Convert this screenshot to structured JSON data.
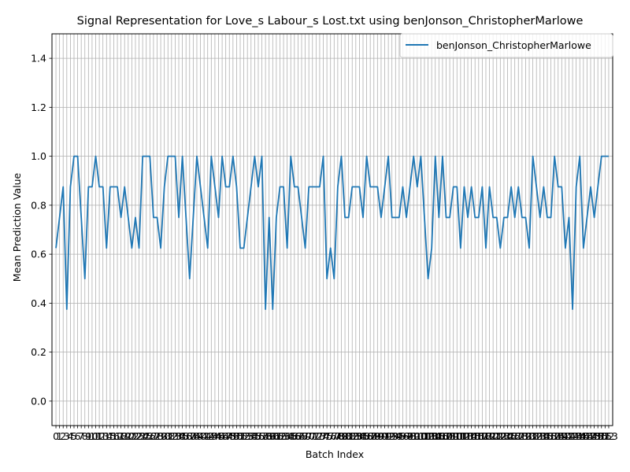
{
  "chart_data": {
    "type": "line",
    "title": "Signal Representation for Love_s Labour_s Lost.txt using benJonson_ChristopherMarlowe",
    "xlabel": "Batch Index",
    "ylabel": "Mean Prediction Value",
    "ylim": [
      -0.1,
      1.5
    ],
    "xlim": [
      -1.1,
      154.1
    ],
    "yticks": [
      0.0,
      0.2,
      0.4,
      0.6,
      0.8,
      1.0,
      1.2,
      1.4
    ],
    "ytick_labels": [
      "0.0",
      "0.2",
      "0.4",
      "0.6",
      "0.8",
      "1.0",
      "1.2",
      "1.4"
    ],
    "xtick_step": 1,
    "grid": true,
    "legend_position": "upper right",
    "colors": {
      "series": "#1f77b4",
      "grid": "#b0b0b0"
    },
    "x": [
      0,
      1,
      2,
      3,
      4,
      5,
      6,
      7,
      8,
      9,
      10,
      11,
      12,
      13,
      14,
      15,
      16,
      17,
      18,
      19,
      20,
      21,
      22,
      23,
      24,
      25,
      26,
      27,
      28,
      29,
      30,
      31,
      32,
      33,
      34,
      35,
      36,
      37,
      38,
      39,
      40,
      41,
      42,
      43,
      44,
      45,
      46,
      47,
      48,
      49,
      50,
      51,
      52,
      53,
      54,
      55,
      56,
      57,
      58,
      59,
      60,
      61,
      62,
      63,
      64,
      65,
      66,
      67,
      68,
      69,
      70,
      71,
      72,
      73,
      74,
      75,
      76,
      77,
      78,
      79,
      80,
      81,
      82,
      83,
      84,
      85,
      86,
      87,
      88,
      89,
      90,
      91,
      92,
      93,
      94,
      95,
      96,
      97,
      98,
      99,
      100,
      101,
      102,
      103,
      104,
      105,
      106,
      107,
      108,
      109,
      110,
      111,
      112,
      113,
      114,
      115,
      116,
      117,
      118,
      119,
      120,
      121,
      122,
      123,
      124,
      125,
      126,
      127,
      128,
      129,
      130,
      131,
      132,
      133,
      134,
      135,
      136,
      137,
      138,
      139,
      140,
      141,
      142,
      143,
      144,
      145,
      146,
      147,
      148,
      149,
      150,
      151,
      152,
      153
    ],
    "series": [
      {
        "name": "benJonson_ChristopherMarlowe",
        "values": [
          0.625,
          0.75,
          0.875,
          0.375,
          0.875,
          1.0,
          1.0,
          0.75,
          0.5,
          0.875,
          0.875,
          1.0,
          0.875,
          0.875,
          0.625,
          0.875,
          0.875,
          0.875,
          0.75,
          0.875,
          0.75,
          0.625,
          0.75,
          0.625,
          1.0,
          1.0,
          1.0,
          0.75,
          0.75,
          0.625,
          0.875,
          1.0,
          1.0,
          1.0,
          0.75,
          1.0,
          0.75,
          0.5,
          0.75,
          1.0,
          0.875,
          0.75,
          0.625,
          1.0,
          0.875,
          0.75,
          1.0,
          0.875,
          0.875,
          1.0,
          0.875,
          0.625,
          0.625,
          0.75,
          0.875,
          1.0,
          0.875,
          1.0,
          0.375,
          0.75,
          0.375,
          0.75,
          0.875,
          0.875,
          0.625,
          1.0,
          0.875,
          0.875,
          0.75,
          0.625,
          0.875,
          0.875,
          0.875,
          0.875,
          1.0,
          0.5,
          0.625,
          0.5,
          0.875,
          1.0,
          0.75,
          0.75,
          0.875,
          0.875,
          0.875,
          0.75,
          1.0,
          0.875,
          0.875,
          0.875,
          0.75,
          0.875,
          1.0,
          0.75,
          0.75,
          0.75,
          0.875,
          0.75,
          0.875,
          1.0,
          0.875,
          1.0,
          0.75,
          0.5,
          0.625,
          1.0,
          0.75,
          1.0,
          0.75,
          0.75,
          0.875,
          0.875,
          0.625,
          0.875,
          0.75,
          0.875,
          0.75,
          0.75,
          0.875,
          0.625,
          0.875,
          0.75,
          0.75,
          0.625,
          0.75,
          0.75,
          0.875,
          0.75,
          0.875,
          0.75,
          0.75,
          0.625,
          1.0,
          0.875,
          0.75,
          0.875,
          0.75,
          0.75,
          1.0,
          0.875,
          0.875,
          0.625,
          0.75,
          0.375,
          0.875,
          1.0,
          0.625,
          0.75,
          0.875,
          0.75,
          0.875,
          1.0,
          1.0,
          1.0
        ]
      }
    ]
  }
}
